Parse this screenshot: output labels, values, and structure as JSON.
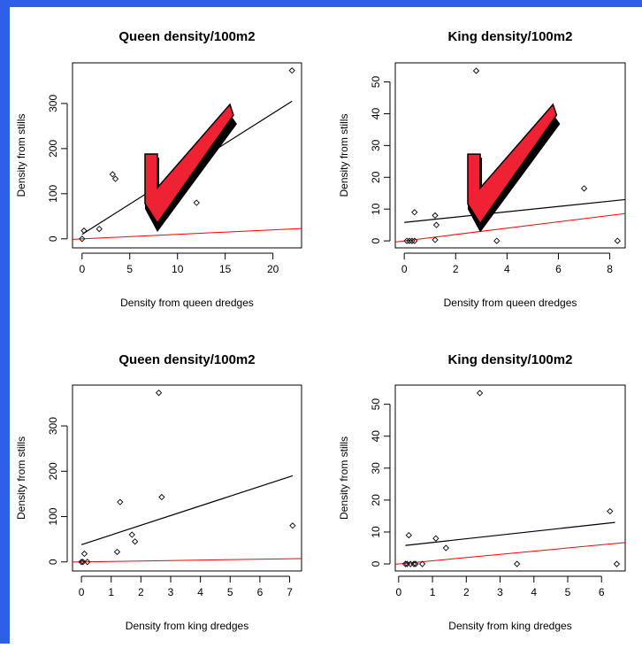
{
  "colors": {
    "frame_blue": "#2f5fe8",
    "fit_line": "#000000",
    "reference_line": "#ff0000",
    "checkmark_fill": "#ee2233",
    "checkmark_shadow": "#000000"
  },
  "chart_data": [
    {
      "type": "scatter",
      "title": "Queen density/100m2",
      "xlabel": "Density from queen dredges",
      "ylabel": "Density from stills",
      "xlim": [
        -1,
        23
      ],
      "ylim": [
        -20,
        390
      ],
      "xticks": [
        0,
        5,
        10,
        15,
        20
      ],
      "yticks": [
        0,
        100,
        200,
        300
      ],
      "points": [
        [
          0,
          0
        ],
        [
          0.2,
          18
        ],
        [
          1.8,
          22
        ],
        [
          3.2,
          143
        ],
        [
          3.5,
          133
        ],
        [
          12,
          80
        ],
        [
          22,
          373
        ]
      ],
      "fit_line": [
        [
          0,
          10
        ],
        [
          22,
          305
        ]
      ],
      "reference_line": [
        [
          -1,
          -1
        ],
        [
          23,
          23
        ]
      ],
      "checkmark": true
    },
    {
      "type": "scatter",
      "title": "King density/100m2",
      "xlabel": "Density from queen dredges",
      "ylabel": "Density from stills",
      "xlim": [
        -0.35,
        8.6
      ],
      "ylim": [
        -2.2,
        56
      ],
      "xticks": [
        0,
        2,
        4,
        6,
        8
      ],
      "yticks": [
        0,
        10,
        20,
        30,
        40,
        50
      ],
      "points": [
        [
          0.1,
          0
        ],
        [
          0.2,
          0
        ],
        [
          0.3,
          0
        ],
        [
          0.4,
          9
        ],
        [
          0.4,
          0
        ],
        [
          1.2,
          8
        ],
        [
          1.2,
          0.3
        ],
        [
          1.25,
          5
        ],
        [
          2.8,
          53.5
        ],
        [
          3.6,
          0
        ],
        [
          7,
          16.5
        ],
        [
          8.3,
          0
        ]
      ],
      "fit_line": [
        [
          0,
          5.8
        ],
        [
          8.6,
          13
        ]
      ],
      "reference_line": [
        [
          -0.35,
          -0.35
        ],
        [
          8.6,
          8.6
        ]
      ],
      "checkmark": true
    },
    {
      "type": "scatter",
      "title": "Queen density/100m2",
      "xlabel": "Density from king dredges",
      "ylabel": "Density from stills",
      "xlim": [
        -0.3,
        7.4
      ],
      "ylim": [
        -20,
        390
      ],
      "xticks": [
        0,
        1,
        2,
        3,
        4,
        5,
        6,
        7
      ],
      "yticks": [
        0,
        100,
        200,
        300
      ],
      "points": [
        [
          0,
          0
        ],
        [
          0.05,
          0
        ],
        [
          0.1,
          18
        ],
        [
          0.2,
          0
        ],
        [
          1.2,
          22
        ],
        [
          1.3,
          132
        ],
        [
          1.7,
          60
        ],
        [
          1.8,
          45
        ],
        [
          2.6,
          373
        ],
        [
          2.7,
          143
        ],
        [
          7.1,
          80
        ]
      ],
      "fit_line": [
        [
          0,
          38
        ],
        [
          7.1,
          190
        ]
      ],
      "reference_line": [
        [
          -0.3,
          -0.3
        ],
        [
          7.4,
          7.4
        ]
      ],
      "checkmark": false
    },
    {
      "type": "scatter",
      "title": "King density/100m2",
      "xlabel": "Density from king dredges",
      "ylabel": "Density from stills",
      "xlim": [
        -0.1,
        6.7
      ],
      "ylim": [
        -2.2,
        56
      ],
      "xticks": [
        0,
        1,
        2,
        3,
        4,
        5,
        6
      ],
      "yticks": [
        0,
        10,
        20,
        30,
        40,
        50
      ],
      "points": [
        [
          0.2,
          0
        ],
        [
          0.25,
          0
        ],
        [
          0.3,
          9
        ],
        [
          0.35,
          0
        ],
        [
          0.45,
          0
        ],
        [
          0.5,
          0
        ],
        [
          0.7,
          0
        ],
        [
          1.1,
          8
        ],
        [
          1.4,
          5
        ],
        [
          2.4,
          53.5
        ],
        [
          3.5,
          0
        ],
        [
          6.25,
          16.5
        ],
        [
          6.45,
          0
        ]
      ],
      "fit_line": [
        [
          0.2,
          5.8
        ],
        [
          6.4,
          13
        ]
      ],
      "reference_line": [
        [
          -0.1,
          -0.1
        ],
        [
          6.7,
          6.7
        ]
      ],
      "checkmark": false
    }
  ]
}
